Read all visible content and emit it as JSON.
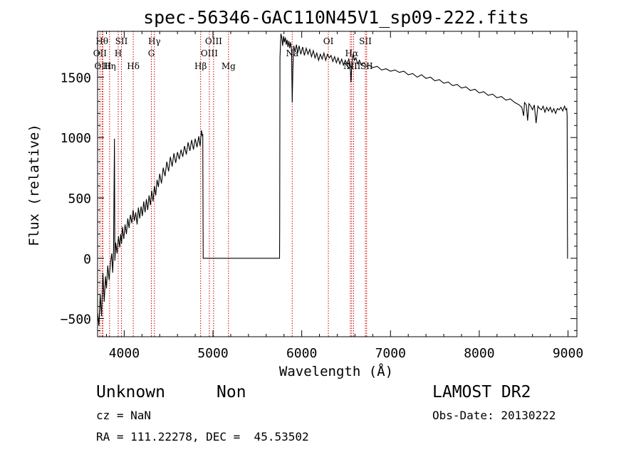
{
  "chart_data": {
    "type": "line",
    "title": "spec-56346-GAC110N45V1_sp09-222.fits",
    "xlabel": "Wavelength (Å)",
    "ylabel": "Flux (relative)",
    "xlim": [
      3700,
      9100
    ],
    "ylim": [
      -650,
      1880
    ],
    "xticks": [
      4000,
      5000,
      6000,
      7000,
      8000,
      9000
    ],
    "xtick_labels": [
      "4000",
      "5000",
      "6000",
      "7000",
      "8000",
      "9000"
    ],
    "yticks": [
      -500,
      0,
      500,
      1000,
      1500
    ],
    "ytick_labels": [
      "−500",
      "0",
      "500",
      "1000",
      "1500"
    ],
    "grid": false,
    "series": [
      {
        "points": [
          [
            3700,
            -450
          ],
          [
            3715,
            -560
          ],
          [
            3730,
            -300
          ],
          [
            3745,
            -480
          ],
          [
            3760,
            -120
          ],
          [
            3775,
            -360
          ],
          [
            3790,
            -150
          ],
          [
            3800,
            -250
          ],
          [
            3815,
            -60
          ],
          [
            3830,
            -180
          ],
          [
            3845,
            -40
          ],
          [
            3860,
            40
          ],
          [
            3870,
            -120
          ],
          [
            3880,
            60
          ],
          [
            3890,
            990
          ],
          [
            3895,
            -20
          ],
          [
            3905,
            130
          ],
          [
            3920,
            40
          ],
          [
            3935,
            180
          ],
          [
            3950,
            90
          ],
          [
            3960,
            200
          ],
          [
            3970,
            120
          ],
          [
            3980,
            260
          ],
          [
            3995,
            160
          ],
          [
            4010,
            280
          ],
          [
            4025,
            200
          ],
          [
            4040,
            330
          ],
          [
            4055,
            250
          ],
          [
            4070,
            360
          ],
          [
            4085,
            290
          ],
          [
            4100,
            400
          ],
          [
            4115,
            310
          ],
          [
            4130,
            380
          ],
          [
            4145,
            280
          ],
          [
            4160,
            420
          ],
          [
            4175,
            330
          ],
          [
            4190,
            430
          ],
          [
            4205,
            350
          ],
          [
            4220,
            470
          ],
          [
            4235,
            380
          ],
          [
            4250,
            490
          ],
          [
            4265,
            400
          ],
          [
            4280,
            520
          ],
          [
            4295,
            440
          ],
          [
            4310,
            560
          ],
          [
            4325,
            470
          ],
          [
            4340,
            600
          ],
          [
            4355,
            520
          ],
          [
            4370,
            650
          ],
          [
            4385,
            590
          ],
          [
            4400,
            700
          ],
          [
            4420,
            620
          ],
          [
            4440,
            750
          ],
          [
            4460,
            680
          ],
          [
            4480,
            800
          ],
          [
            4500,
            720
          ],
          [
            4520,
            840
          ],
          [
            4540,
            760
          ],
          [
            4560,
            870
          ],
          [
            4580,
            790
          ],
          [
            4600,
            880
          ],
          [
            4620,
            820
          ],
          [
            4640,
            900
          ],
          [
            4660,
            840
          ],
          [
            4680,
            930
          ],
          [
            4700,
            860
          ],
          [
            4720,
            960
          ],
          [
            4740,
            890
          ],
          [
            4760,
            980
          ],
          [
            4780,
            900
          ],
          [
            4800,
            990
          ],
          [
            4820,
            920
          ],
          [
            4840,
            1010
          ],
          [
            4855,
            930
          ],
          [
            4870,
            1060
          ],
          [
            4880,
            1010
          ],
          [
            4885,
            1030
          ],
          [
            4888,
            290
          ],
          [
            4890,
            0
          ],
          [
            4900,
            0
          ],
          [
            5000,
            0
          ],
          [
            5200,
            0
          ],
          [
            5400,
            0
          ],
          [
            5600,
            0
          ],
          [
            5700,
            0
          ],
          [
            5750,
            0
          ],
          [
            5752,
            250
          ],
          [
            5755,
            1660
          ],
          [
            5765,
            1860
          ],
          [
            5775,
            1830
          ],
          [
            5785,
            1760
          ],
          [
            5795,
            1840
          ],
          [
            5805,
            1790
          ],
          [
            5815,
            1830
          ],
          [
            5825,
            1770
          ],
          [
            5835,
            1810
          ],
          [
            5845,
            1750
          ],
          [
            5855,
            1800
          ],
          [
            5865,
            1740
          ],
          [
            5875,
            1790
          ],
          [
            5885,
            1730
          ],
          [
            5893,
            1290
          ],
          [
            5900,
            1560
          ],
          [
            5910,
            1760
          ],
          [
            5925,
            1710
          ],
          [
            5940,
            1770
          ],
          [
            5955,
            1700
          ],
          [
            5970,
            1760
          ],
          [
            5990,
            1690
          ],
          [
            6010,
            1750
          ],
          [
            6030,
            1680
          ],
          [
            6050,
            1740
          ],
          [
            6070,
            1690
          ],
          [
            6090,
            1730
          ],
          [
            6110,
            1670
          ],
          [
            6130,
            1720
          ],
          [
            6150,
            1660
          ],
          [
            6170,
            1700
          ],
          [
            6190,
            1640
          ],
          [
            6210,
            1690
          ],
          [
            6230,
            1650
          ],
          [
            6250,
            1700
          ],
          [
            6270,
            1640
          ],
          [
            6290,
            1690
          ],
          [
            6310,
            1660
          ],
          [
            6330,
            1680
          ],
          [
            6350,
            1630
          ],
          [
            6370,
            1670
          ],
          [
            6390,
            1620
          ],
          [
            6410,
            1660
          ],
          [
            6430,
            1610
          ],
          [
            6450,
            1650
          ],
          [
            6470,
            1600
          ],
          [
            6490,
            1640
          ],
          [
            6510,
            1610
          ],
          [
            6530,
            1650
          ],
          [
            6545,
            1600
          ],
          [
            6555,
            1460
          ],
          [
            6565,
            1620
          ],
          [
            6580,
            1690
          ],
          [
            6595,
            1640
          ],
          [
            6610,
            1660
          ],
          [
            6630,
            1610
          ],
          [
            6650,
            1640
          ],
          [
            6670,
            1600
          ],
          [
            6700,
            1620
          ],
          [
            6730,
            1590
          ],
          [
            6760,
            1600
          ],
          [
            6800,
            1580
          ],
          [
            6850,
            1590
          ],
          [
            6900,
            1560
          ],
          [
            6950,
            1570
          ],
          [
            7000,
            1550
          ],
          [
            7050,
            1560
          ],
          [
            7100,
            1540
          ],
          [
            7150,
            1550
          ],
          [
            7200,
            1520
          ],
          [
            7250,
            1530
          ],
          [
            7300,
            1500
          ],
          [
            7350,
            1520
          ],
          [
            7400,
            1490
          ],
          [
            7450,
            1500
          ],
          [
            7500,
            1470
          ],
          [
            7550,
            1480
          ],
          [
            7600,
            1450
          ],
          [
            7650,
            1460
          ],
          [
            7700,
            1430
          ],
          [
            7750,
            1440
          ],
          [
            7800,
            1410
          ],
          [
            7850,
            1420
          ],
          [
            7900,
            1390
          ],
          [
            7950,
            1400
          ],
          [
            8000,
            1370
          ],
          [
            8050,
            1380
          ],
          [
            8100,
            1350
          ],
          [
            8150,
            1360
          ],
          [
            8200,
            1330
          ],
          [
            8250,
            1340
          ],
          [
            8300,
            1310
          ],
          [
            8350,
            1320
          ],
          [
            8400,
            1290
          ],
          [
            8450,
            1270
          ],
          [
            8480,
            1250
          ],
          [
            8500,
            1180
          ],
          [
            8510,
            1290
          ],
          [
            8530,
            1270
          ],
          [
            8545,
            1140
          ],
          [
            8560,
            1280
          ],
          [
            8580,
            1260
          ],
          [
            8600,
            1230
          ],
          [
            8620,
            1270
          ],
          [
            8640,
            1120
          ],
          [
            8660,
            1260
          ],
          [
            8680,
            1240
          ],
          [
            8700,
            1230
          ],
          [
            8720,
            1260
          ],
          [
            8740,
            1210
          ],
          [
            8760,
            1250
          ],
          [
            8780,
            1220
          ],
          [
            8800,
            1250
          ],
          [
            8820,
            1210
          ],
          [
            8840,
            1240
          ],
          [
            8860,
            1200
          ],
          [
            8880,
            1240
          ],
          [
            8900,
            1230
          ],
          [
            8920,
            1250
          ],
          [
            8940,
            1220
          ],
          [
            8960,
            1260
          ],
          [
            8975,
            1230
          ],
          [
            8985,
            1240
          ],
          [
            8990,
            1180
          ],
          [
            8993,
            250
          ],
          [
            8995,
            0
          ],
          [
            9000,
            0
          ]
        ]
      }
    ],
    "line_markers": [
      {
        "w": 3727,
        "row": 2,
        "label": "OII"
      },
      {
        "w": 3750,
        "row": 1,
        "label": "Hθ"
      },
      {
        "w": 3760,
        "row": 3,
        "label": "OIII"
      },
      {
        "w": 3835,
        "row": 3,
        "label": "Hη"
      },
      {
        "w": 3933,
        "row": 2,
        "label": "H"
      },
      {
        "w": 3969,
        "row": 1,
        "label": "SII"
      },
      {
        "w": 4102,
        "row": 3,
        "label": "Hδ"
      },
      {
        "w": 4306,
        "row": 2,
        "label": "G"
      },
      {
        "w": 4340,
        "row": 1,
        "label": "Hγ"
      },
      {
        "w": 4861,
        "row": 3,
        "label": "Hβ"
      },
      {
        "w": 4959,
        "row": 2,
        "label": "OIII"
      },
      {
        "w": 5007,
        "row": 1,
        "label": "OIII"
      },
      {
        "w": 5175,
        "row": 3,
        "label": "Mg"
      },
      {
        "w": 5893,
        "row": 2,
        "label": "Na"
      },
      {
        "w": 6300,
        "row": 1,
        "label": "OI"
      },
      {
        "w": 6548,
        "row": 3,
        "label": "NII"
      },
      {
        "w": 6563,
        "row": 2,
        "label": "Hα"
      },
      {
        "w": 6584,
        "row": 3,
        "label": "NII"
      },
      {
        "w": 6717,
        "row": 1,
        "label": "SII"
      },
      {
        "w": 6731,
        "row": 3,
        "label": "SII"
      }
    ],
    "colors": {
      "spectrum": "#000000",
      "marker": "#cc0000",
      "axes": "#000000"
    }
  },
  "info": {
    "object_class": "Unknown",
    "subclass": "Non",
    "survey": "LAMOST DR2",
    "redshift": "cz = NaN",
    "obs_date": "Obs-Date: 20130222",
    "coords": "RA = 111.22278, DEC =  45.53502"
  }
}
